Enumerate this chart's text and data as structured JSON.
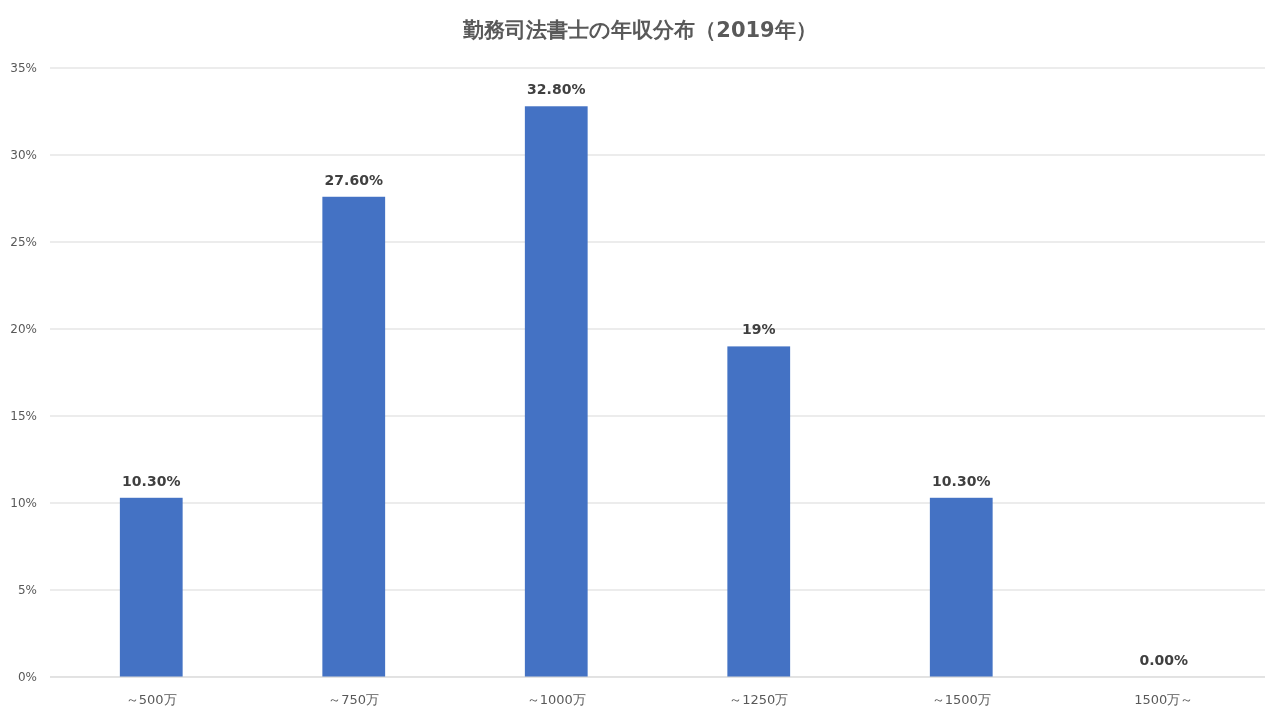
{
  "chart_data": {
    "type": "bar",
    "title": "勤務司法書士の年収分布（2019年）",
    "categories": [
      "～500万",
      "～750万",
      "～1000万",
      "～1250万",
      "～1500万",
      "1500万～"
    ],
    "values": [
      10.3,
      27.6,
      32.8,
      19,
      10.3,
      0
    ],
    "value_labels": [
      "10.30%",
      "27.60%",
      "32.80%",
      "19%",
      "10.30%",
      "0.00%"
    ],
    "color": "#4472c4",
    "ylim": [
      0,
      35
    ],
    "yticks": [
      {
        "value": 0,
        "label": "0%"
      },
      {
        "value": 5,
        "label": "5%"
      },
      {
        "value": 10,
        "label": "10%"
      },
      {
        "value": 15,
        "label": "15%"
      },
      {
        "value": 20,
        "label": "20%"
      },
      {
        "value": 25,
        "label": "25%"
      },
      {
        "value": 30,
        "label": "30%"
      },
      {
        "value": 35,
        "label": "35%"
      }
    ],
    "grid": "y"
  }
}
